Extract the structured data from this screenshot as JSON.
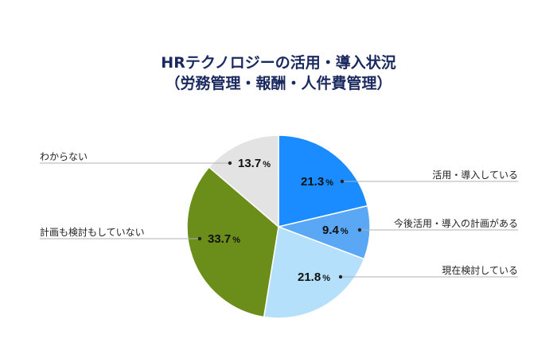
{
  "header": {
    "title_line1": "HRテクノロジーの活用・導入状況",
    "title_line2": "（労務管理・報酬・人件費管理）"
  },
  "chart_data": {
    "type": "pie",
    "title": "HRテクノロジーの活用・導入状況（労務管理・報酬・人件費管理）",
    "categories": [
      "活用・導入している",
      "今後活用・導入の計画がある",
      "現在検討している",
      "計画も検討もしていない",
      "わからない"
    ],
    "values": [
      21.3,
      9.4,
      21.8,
      33.7,
      13.7
    ],
    "unit": "%",
    "colors": [
      "#1a8cff",
      "#5aa8f5",
      "#b5e0fb",
      "#6b8e1a",
      "#e3e3e3"
    ],
    "start_angle": "12 o'clock, clockwise",
    "legend_position": "callout labels with leader lines"
  },
  "slices": [
    {
      "label": "活用・導入している",
      "value_text": "21.3",
      "pct": "%"
    },
    {
      "label": "今後活用・導入の計画がある",
      "value_text": "9.4",
      "pct": "%"
    },
    {
      "label": "現在検討している",
      "value_text": "21.8",
      "pct": "%"
    },
    {
      "label": "計画も検討もしていない",
      "value_text": "33.7",
      "pct": "%"
    },
    {
      "label": "わからない",
      "value_text": "13.7",
      "pct": "%"
    }
  ]
}
